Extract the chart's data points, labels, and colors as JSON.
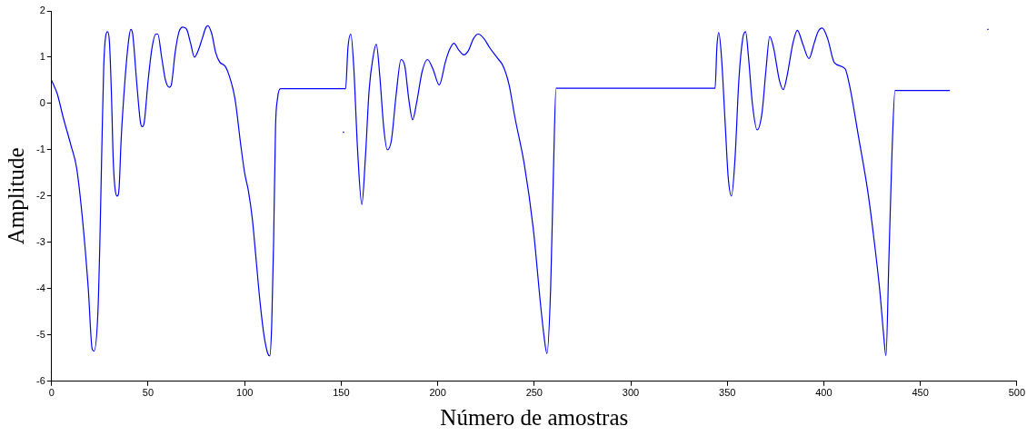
{
  "chart_data": {
    "type": "line",
    "xlabel": "Número de amostras",
    "ylabel": "Amplitude",
    "xlim": [
      0,
      500
    ],
    "xticks": [
      0,
      50,
      100,
      150,
      200,
      250,
      300,
      350,
      400,
      450,
      500
    ],
    "ylim": [
      -6,
      2
    ],
    "yticks": [
      -6,
      -5,
      -4,
      -3,
      -2,
      -1,
      0,
      1,
      2
    ],
    "grid": false,
    "legend": false,
    "marker": "none",
    "line_style": "solid",
    "series": [
      {
        "color": "#0000ff",
        "x": [
          0,
          3,
          6,
          10,
          13,
          16,
          19,
          21,
          22,
          24,
          25,
          26,
          27,
          28,
          29,
          30,
          31,
          32,
          34,
          35,
          36,
          38,
          40,
          41,
          42,
          44,
          46,
          47,
          48,
          50,
          52,
          54,
          55,
          57,
          59,
          61,
          62,
          64,
          66,
          68,
          70,
          72,
          74,
          76,
          78,
          80,
          81,
          83,
          85,
          87,
          90,
          92,
          95,
          98,
          100,
          102,
          104,
          106,
          108,
          110,
          112,
          113,
          114,
          115,
          116,
          117,
          118.5,
          152.3,
          153.5,
          155,
          156.5,
          158.5,
          160.7,
          162.5,
          164.5,
          166.5,
          168.2,
          170,
          172,
          173.9,
          176,
          178.5,
          181,
          183,
          185,
          187,
          189,
          192,
          194.7,
          197.5,
          200.8,
          204,
          206,
          208.4,
          211,
          213.6,
          216,
          218.5,
          221,
          224,
          227,
          230.6,
          234,
          237,
          240,
          244.8,
          249.5,
          253.3,
          255,
          256.6,
          258.5,
          260,
          261.3,
          343.7,
          344.6,
          345.6,
          347,
          349,
          350.5,
          352.2,
          354,
          356,
          358,
          359.5,
          361,
          363,
          365.5,
          368,
          370,
          372,
          374,
          377,
          379,
          381,
          384,
          386.3,
          389,
          392.3,
          395,
          397,
          399.2,
          402,
          405.5,
          411,
          413.3,
          418,
          422.8,
          426,
          429,
          431,
          432.2,
          433.7,
          435.3,
          436.9,
          465.3
        ],
        "values": [
          0.5,
          0.2,
          -0.3,
          -0.9,
          -1.4,
          -2.5,
          -4.0,
          -5.3,
          -5.35,
          -4.5,
          -3.0,
          -1.0,
          0.8,
          1.45,
          1.55,
          1.3,
          0.2,
          -1.3,
          -2.0,
          -1.8,
          -0.8,
          0.5,
          1.4,
          1.6,
          1.5,
          0.5,
          -0.4,
          -0.5,
          -0.4,
          0.5,
          1.2,
          1.5,
          1.5,
          1.0,
          0.5,
          0.35,
          0.4,
          1.1,
          1.55,
          1.65,
          1.6,
          1.3,
          1.0,
          1.15,
          1.4,
          1.65,
          1.68,
          1.5,
          1.1,
          0.9,
          0.8,
          0.6,
          0.1,
          -0.9,
          -1.5,
          -1.9,
          -2.5,
          -3.4,
          -4.3,
          -5.0,
          -5.4,
          -5.45,
          -4.8,
          -3.0,
          -0.5,
          0.1,
          0.32,
          0.32,
          1.2,
          1.5,
          0.8,
          -1.0,
          -2.18,
          -1.2,
          0.3,
          1.0,
          1.28,
          0.6,
          -0.5,
          -1.0,
          -0.8,
          0.2,
          0.95,
          0.8,
          0.1,
          -0.35,
          0.0,
          0.7,
          0.95,
          0.75,
          0.4,
          0.9,
          1.15,
          1.3,
          1.15,
          1.05,
          1.15,
          1.4,
          1.5,
          1.4,
          1.2,
          1.0,
          0.8,
          0.4,
          -0.3,
          -1.3,
          -2.7,
          -4.35,
          -5.0,
          -5.4,
          -4.0,
          -1.4,
          0.33,
          0.33,
          1.2,
          1.53,
          1.0,
          -0.5,
          -1.6,
          -2.0,
          -1.2,
          0.5,
          1.4,
          1.55,
          1.0,
          0.0,
          -0.57,
          -0.2,
          0.7,
          1.45,
          1.2,
          0.5,
          0.3,
          0.6,
          1.3,
          1.58,
          1.3,
          0.97,
          1.3,
          1.55,
          1.63,
          1.4,
          0.88,
          0.75,
          0.4,
          -0.72,
          -1.9,
          -2.93,
          -4.04,
          -5.0,
          -5.45,
          -3.4,
          -1.1,
          0.28,
          0.28
        ]
      },
      {
        "type": "scatter",
        "color": "#0000ff",
        "marker": "square",
        "x": [
          151.2,
          485
        ],
        "values": [
          -0.62,
          1.6
        ]
      }
    ]
  }
}
